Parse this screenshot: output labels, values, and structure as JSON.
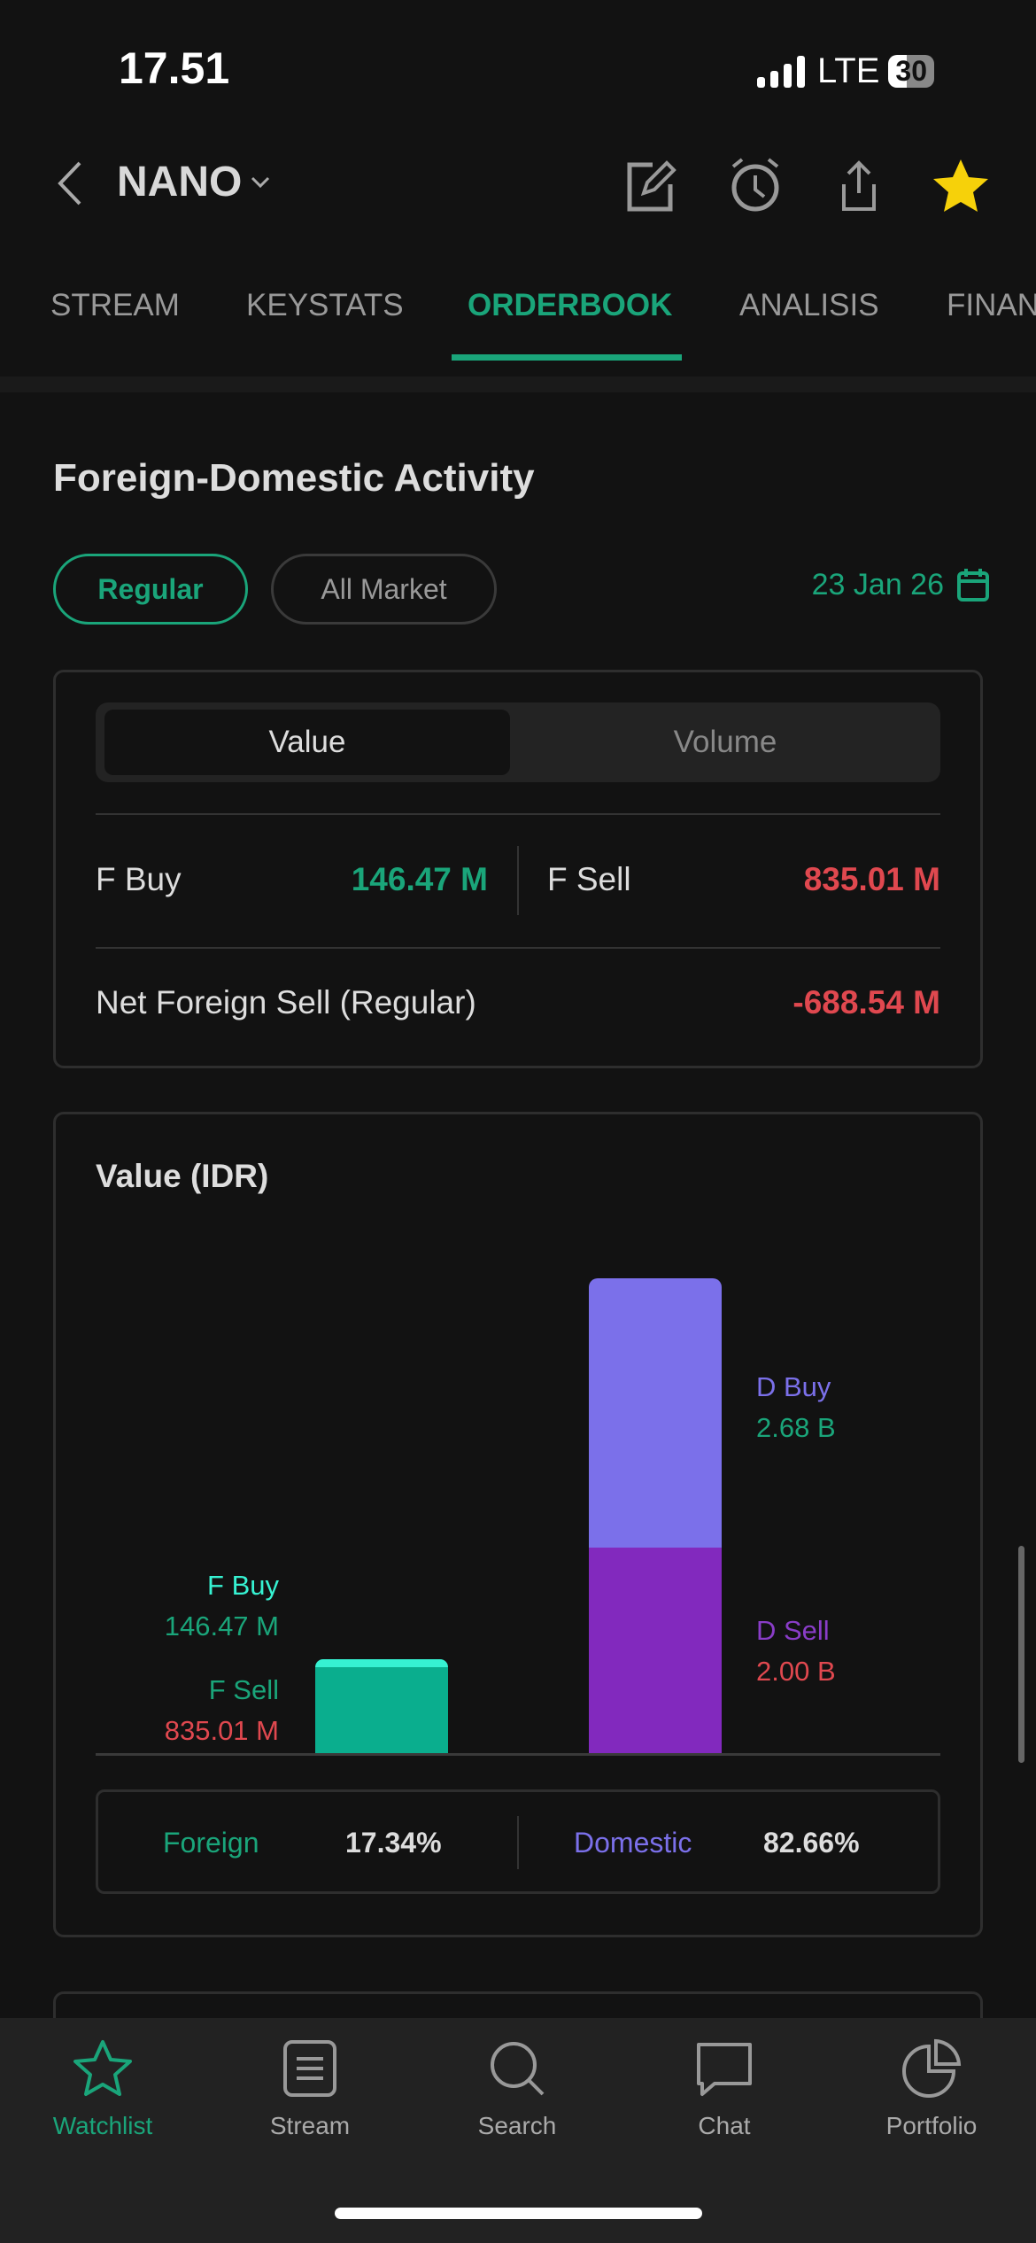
{
  "status": {
    "time": "17.51",
    "network": "LTE",
    "battery": "30"
  },
  "header": {
    "ticker": "NANO"
  },
  "tabs": [
    "STREAM",
    "KEYSTATS",
    "ORDERBOOK",
    "ANALISIS",
    "FINAN"
  ],
  "section": {
    "title": "Foreign-Domestic Activity",
    "filters": [
      "Regular",
      "All Market"
    ],
    "date": "23 Jan 26"
  },
  "summary": {
    "segments": [
      "Value",
      "Volume"
    ],
    "f_buy_label": "F Buy",
    "f_buy": "146.47 M",
    "f_sell_label": "F Sell",
    "f_sell": "835.01 M",
    "net_label": "Net Foreign Sell (Regular)",
    "net": "-688.54 M"
  },
  "chart_card": {
    "title": "Value (IDR)",
    "foreign_label": "Foreign",
    "foreign_pct": "17.34%",
    "domestic_label": "Domestic",
    "domestic_pct": "82.66%"
  },
  "chart_data": {
    "type": "bar",
    "stacked": true,
    "categories": [
      "Foreign",
      "Domestic"
    ],
    "series": [
      {
        "name": "Sell",
        "values": [
          835.01,
          2000
        ]
      },
      {
        "name": "Buy",
        "values": [
          146.47,
          2680
        ]
      }
    ],
    "unit": "M IDR",
    "labels": {
      "f_buy": "F Buy",
      "f_buy_value": "146.47 M",
      "f_sell": "F Sell",
      "f_sell_value": "835.01 M",
      "d_buy": "D Buy",
      "d_buy_value": "2.68 B",
      "d_sell": "D Sell",
      "d_sell_value": "2.00 B"
    },
    "colors": {
      "f_buy": "#36f2d2",
      "f_sell": "#0aae8e",
      "d_buy": "#7b70ea",
      "d_sell": "#8229be"
    }
  },
  "bottom_nav": [
    {
      "label": "Watchlist",
      "icon": "star-icon",
      "active": true
    },
    {
      "label": "Stream",
      "icon": "stream-icon"
    },
    {
      "label": "Search",
      "icon": "search-icon"
    },
    {
      "label": "Chat",
      "icon": "chat-icon"
    },
    {
      "label": "Portfolio",
      "icon": "pie-chart-icon"
    }
  ],
  "colors": {
    "accent": "#1aa57a",
    "red": "#e0484f"
  }
}
